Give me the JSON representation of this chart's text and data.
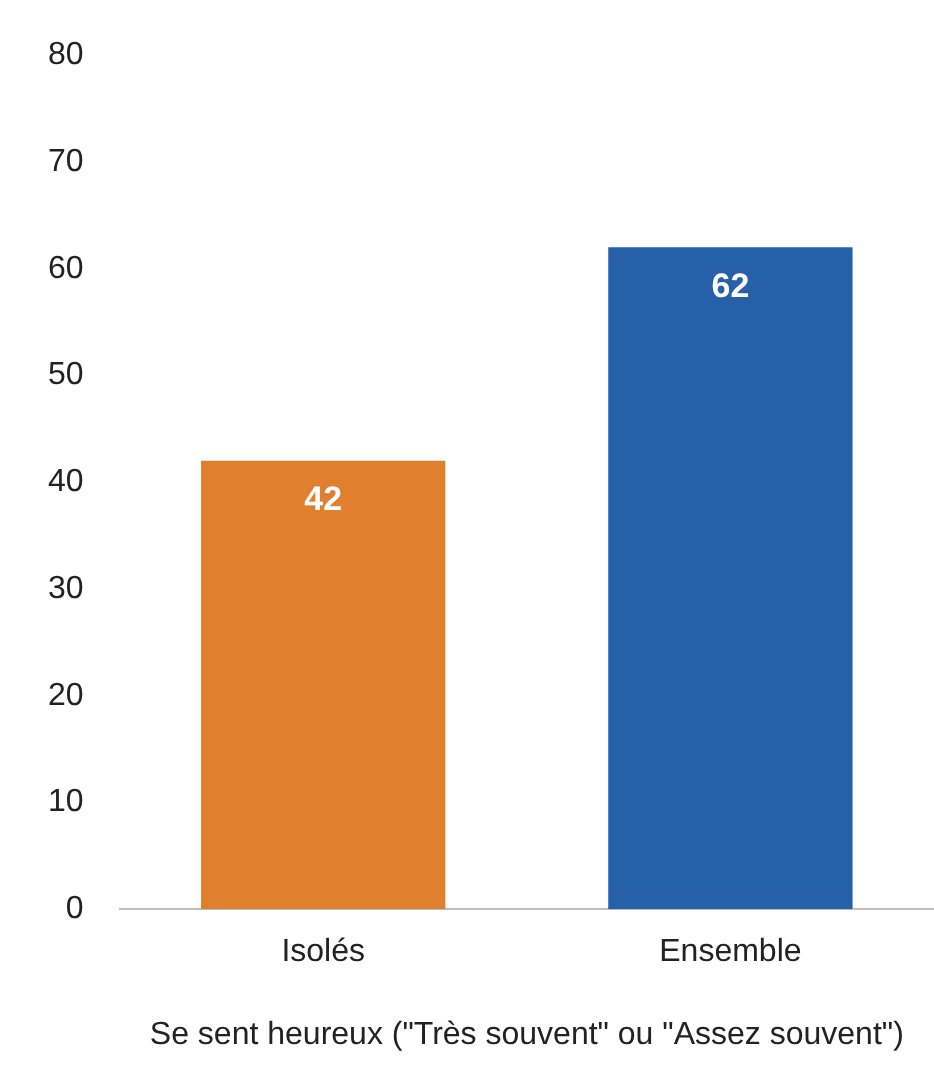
{
  "chart_data": {
    "type": "bar",
    "categories": [
      "Isolés",
      "Ensemble"
    ],
    "values": [
      42,
      62
    ],
    "colors": [
      "#e07f2e",
      "#2660a8"
    ],
    "xlabel": "Se sent heureux (\"Très souvent\" ou \"Assez souvent\")",
    "ylim": [
      0,
      80
    ],
    "yticks": [
      0,
      10,
      20,
      30,
      40,
      50,
      60,
      70,
      80
    ],
    "grid": false,
    "legend": false,
    "data_labels": true
  }
}
